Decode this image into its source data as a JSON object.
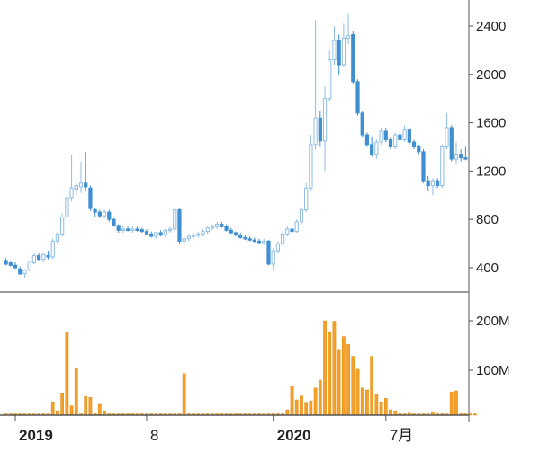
{
  "colors": {
    "candle_up_stroke": "#8fbde4",
    "candle_down_fill": "#3f8fd2",
    "volume_bar": "#f5a028",
    "volume_bar_stroke": "#e08a10",
    "axis": "#555555",
    "separator": "#777777"
  },
  "chart_data": [
    {
      "type": "candlestick",
      "title": "",
      "xlabel": "",
      "ylabel": "",
      "ylim": [
        250,
        2500
      ],
      "y_ticks": [
        "400",
        "800",
        "1200",
        "1600",
        "2000",
        "2400"
      ],
      "grid": false,
      "y_axis_side": "right",
      "x_ticks": [
        {
          "label": "2019",
          "index": 2,
          "bold": true
        },
        {
          "label": "8",
          "index": 30,
          "bold": false
        },
        {
          "label": "2020",
          "index": 57,
          "bold": true
        },
        {
          "label": "7月",
          "index": 81,
          "bold": false
        }
      ],
      "candles": [
        {
          "o": 460,
          "h": 480,
          "l": 420,
          "c": 430
        },
        {
          "o": 440,
          "h": 460,
          "l": 410,
          "c": 420
        },
        {
          "o": 420,
          "h": 450,
          "l": 390,
          "c": 400
        },
        {
          "o": 390,
          "h": 410,
          "l": 340,
          "c": 350
        },
        {
          "o": 350,
          "h": 390,
          "l": 320,
          "c": 380
        },
        {
          "o": 380,
          "h": 460,
          "l": 370,
          "c": 450
        },
        {
          "o": 440,
          "h": 520,
          "l": 430,
          "c": 500
        },
        {
          "o": 500,
          "h": 520,
          "l": 460,
          "c": 470
        },
        {
          "o": 470,
          "h": 520,
          "l": 450,
          "c": 510
        },
        {
          "o": 500,
          "h": 540,
          "l": 470,
          "c": 490
        },
        {
          "o": 490,
          "h": 640,
          "l": 470,
          "c": 620
        },
        {
          "o": 620,
          "h": 700,
          "l": 600,
          "c": 680
        },
        {
          "o": 680,
          "h": 850,
          "l": 660,
          "c": 820
        },
        {
          "o": 820,
          "h": 1000,
          "l": 800,
          "c": 980
        },
        {
          "o": 980,
          "h": 1330,
          "l": 950,
          "c": 1060
        },
        {
          "o": 1050,
          "h": 1100,
          "l": 1000,
          "c": 1080
        },
        {
          "o": 1070,
          "h": 1280,
          "l": 1020,
          "c": 1100
        },
        {
          "o": 1100,
          "h": 1360,
          "l": 1040,
          "c": 1070
        },
        {
          "o": 1060,
          "h": 1080,
          "l": 870,
          "c": 890
        },
        {
          "o": 880,
          "h": 900,
          "l": 820,
          "c": 860
        },
        {
          "o": 860,
          "h": 880,
          "l": 810,
          "c": 830
        },
        {
          "o": 830,
          "h": 880,
          "l": 810,
          "c": 860
        },
        {
          "o": 860,
          "h": 880,
          "l": 780,
          "c": 800
        },
        {
          "o": 800,
          "h": 810,
          "l": 740,
          "c": 750
        },
        {
          "o": 750,
          "h": 760,
          "l": 690,
          "c": 710
        },
        {
          "o": 710,
          "h": 750,
          "l": 690,
          "c": 720
        },
        {
          "o": 720,
          "h": 740,
          "l": 700,
          "c": 710
        },
        {
          "o": 710,
          "h": 740,
          "l": 690,
          "c": 720
        },
        {
          "o": 720,
          "h": 740,
          "l": 700,
          "c": 715
        },
        {
          "o": 715,
          "h": 730,
          "l": 690,
          "c": 700
        },
        {
          "o": 700,
          "h": 720,
          "l": 670,
          "c": 680
        },
        {
          "o": 680,
          "h": 700,
          "l": 650,
          "c": 660
        },
        {
          "o": 660,
          "h": 700,
          "l": 640,
          "c": 690
        },
        {
          "o": 690,
          "h": 710,
          "l": 660,
          "c": 670
        },
        {
          "o": 670,
          "h": 720,
          "l": 650,
          "c": 710
        },
        {
          "o": 710,
          "h": 740,
          "l": 690,
          "c": 720
        },
        {
          "o": 720,
          "h": 900,
          "l": 700,
          "c": 880
        },
        {
          "o": 880,
          "h": 890,
          "l": 600,
          "c": 620
        },
        {
          "o": 620,
          "h": 660,
          "l": 580,
          "c": 640
        },
        {
          "o": 640,
          "h": 680,
          "l": 620,
          "c": 660
        },
        {
          "o": 660,
          "h": 690,
          "l": 640,
          "c": 670
        },
        {
          "o": 670,
          "h": 700,
          "l": 650,
          "c": 680
        },
        {
          "o": 680,
          "h": 720,
          "l": 660,
          "c": 700
        },
        {
          "o": 700,
          "h": 740,
          "l": 680,
          "c": 730
        },
        {
          "o": 730,
          "h": 760,
          "l": 710,
          "c": 740
        },
        {
          "o": 740,
          "h": 780,
          "l": 720,
          "c": 760
        },
        {
          "o": 760,
          "h": 780,
          "l": 730,
          "c": 740
        },
        {
          "o": 740,
          "h": 760,
          "l": 700,
          "c": 710
        },
        {
          "o": 710,
          "h": 730,
          "l": 680,
          "c": 690
        },
        {
          "o": 690,
          "h": 700,
          "l": 660,
          "c": 670
        },
        {
          "o": 670,
          "h": 690,
          "l": 640,
          "c": 650
        },
        {
          "o": 650,
          "h": 670,
          "l": 630,
          "c": 640
        },
        {
          "o": 640,
          "h": 660,
          "l": 620,
          "c": 630
        },
        {
          "o": 630,
          "h": 650,
          "l": 610,
          "c": 620
        },
        {
          "o": 620,
          "h": 640,
          "l": 600,
          "c": 610
        },
        {
          "o": 610,
          "h": 640,
          "l": 590,
          "c": 620
        },
        {
          "o": 620,
          "h": 630,
          "l": 420,
          "c": 430
        },
        {
          "o": 430,
          "h": 560,
          "l": 380,
          "c": 540
        },
        {
          "o": 540,
          "h": 620,
          "l": 520,
          "c": 600
        },
        {
          "o": 600,
          "h": 700,
          "l": 580,
          "c": 680
        },
        {
          "o": 680,
          "h": 740,
          "l": 660,
          "c": 720
        },
        {
          "o": 720,
          "h": 760,
          "l": 680,
          "c": 700
        },
        {
          "o": 700,
          "h": 800,
          "l": 690,
          "c": 780
        },
        {
          "o": 780,
          "h": 900,
          "l": 760,
          "c": 880
        },
        {
          "o": 880,
          "h": 1100,
          "l": 860,
          "c": 1060
        },
        {
          "o": 1060,
          "h": 1500,
          "l": 1040,
          "c": 1420
        },
        {
          "o": 1420,
          "h": 2450,
          "l": 1380,
          "c": 1640
        },
        {
          "o": 1640,
          "h": 1700,
          "l": 1400,
          "c": 1450
        },
        {
          "o": 1450,
          "h": 1900,
          "l": 1200,
          "c": 1800
        },
        {
          "o": 1800,
          "h": 2200,
          "l": 1780,
          "c": 2120
        },
        {
          "o": 2120,
          "h": 2400,
          "l": 2080,
          "c": 2280
        },
        {
          "o": 2280,
          "h": 2330,
          "l": 2000,
          "c": 2080
        },
        {
          "o": 2080,
          "h": 2420,
          "l": 2060,
          "c": 2300
        },
        {
          "o": 2300,
          "h": 2500,
          "l": 2250,
          "c": 2320
        },
        {
          "o": 2330,
          "h": 2360,
          "l": 1920,
          "c": 1940
        },
        {
          "o": 1940,
          "h": 1960,
          "l": 1660,
          "c": 1680
        },
        {
          "o": 1680,
          "h": 1700,
          "l": 1480,
          "c": 1500
        },
        {
          "o": 1500,
          "h": 1520,
          "l": 1400,
          "c": 1420
        },
        {
          "o": 1420,
          "h": 1480,
          "l": 1320,
          "c": 1340
        },
        {
          "o": 1340,
          "h": 1460,
          "l": 1300,
          "c": 1440
        },
        {
          "o": 1440,
          "h": 1560,
          "l": 1420,
          "c": 1530
        },
        {
          "o": 1530,
          "h": 1560,
          "l": 1440,
          "c": 1460
        },
        {
          "o": 1460,
          "h": 1480,
          "l": 1380,
          "c": 1400
        },
        {
          "o": 1400,
          "h": 1520,
          "l": 1380,
          "c": 1500
        },
        {
          "o": 1500,
          "h": 1560,
          "l": 1440,
          "c": 1460
        },
        {
          "o": 1460,
          "h": 1580,
          "l": 1440,
          "c": 1540
        },
        {
          "o": 1540,
          "h": 1560,
          "l": 1420,
          "c": 1440
        },
        {
          "o": 1440,
          "h": 1460,
          "l": 1380,
          "c": 1400
        },
        {
          "o": 1400,
          "h": 1420,
          "l": 1340,
          "c": 1360
        },
        {
          "o": 1360,
          "h": 1380,
          "l": 1100,
          "c": 1120
        },
        {
          "o": 1120,
          "h": 1160,
          "l": 1040,
          "c": 1080
        },
        {
          "o": 1080,
          "h": 1140,
          "l": 1000,
          "c": 1120
        },
        {
          "o": 1120,
          "h": 1140,
          "l": 1060,
          "c": 1080
        },
        {
          "o": 1080,
          "h": 1420,
          "l": 1060,
          "c": 1400
        },
        {
          "o": 1400,
          "h": 1680,
          "l": 1380,
          "c": 1560
        },
        {
          "o": 1560,
          "h": 1580,
          "l": 1280,
          "c": 1300
        },
        {
          "o": 1300,
          "h": 1440,
          "l": 1250,
          "c": 1340
        },
        {
          "o": 1340,
          "h": 1380,
          "l": 1280,
          "c": 1310
        },
        {
          "o": 1310,
          "h": 1400,
          "l": 1290,
          "c": 1300
        }
      ]
    },
    {
      "type": "bar",
      "title": "",
      "xlabel": "",
      "ylabel": "",
      "ylim": [
        0,
        235
      ],
      "y_ticks": [
        "100M",
        "200M"
      ],
      "y_unit": "M",
      "y_axis_side": "right",
      "values": [
        1,
        1,
        1,
        1,
        1,
        1,
        4,
        1,
        1,
        1,
        36,
        18,
        54,
        176,
        28,
        105,
        9,
        47,
        45,
        12,
        31,
        18,
        12,
        6,
        8,
        4,
        1,
        1,
        1,
        1,
        1,
        1,
        1,
        1,
        1,
        1,
        1,
        1,
        93,
        8,
        11,
        3,
        6,
        1,
        1,
        1,
        1,
        1,
        1,
        1,
        1,
        1,
        1,
        1,
        1,
        1,
        1,
        1,
        5,
        9,
        20,
        68,
        40,
        48,
        35,
        38,
        64,
        80,
        200,
        178,
        199,
        142,
        168,
        152,
        128,
        102,
        64,
        60,
        128,
        52,
        36,
        43,
        20,
        18,
        12,
        6,
        13,
        2,
        1,
        1,
        1,
        16,
        9,
        8,
        4,
        56,
        58,
        3,
        8,
        1,
        4
      ]
    }
  ]
}
